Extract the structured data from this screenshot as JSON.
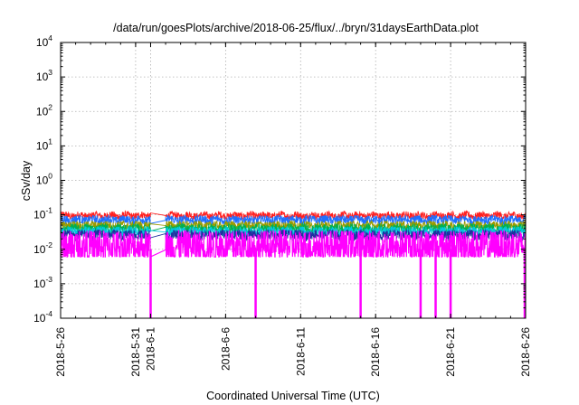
{
  "chart_data": {
    "type": "line",
    "title": "/data/run/goesPlots/archive/2018-06-25/flux/../bryn/31daysEarthData.plot",
    "xlabel": "Coordinated Universal Time (UTC)",
    "ylabel": "cSv/day",
    "y_scale": "log",
    "ylim": [
      0.0001,
      10000
    ],
    "xlim": [
      "2018-05-26",
      "2018-06-26"
    ],
    "grid": true,
    "legend": "none",
    "y_ticks": [
      {
        "base": "10",
        "exp": "-4",
        "value": 0.0001
      },
      {
        "base": "10",
        "exp": "-3",
        "value": 0.001
      },
      {
        "base": "10",
        "exp": "-2",
        "value": 0.01
      },
      {
        "base": "10",
        "exp": "-1",
        "value": 0.1
      },
      {
        "base": "10",
        "exp": "0",
        "value": 1
      },
      {
        "base": "10",
        "exp": "1",
        "value": 10
      },
      {
        "base": "10",
        "exp": "2",
        "value": 100
      },
      {
        "base": "10",
        "exp": "3",
        "value": 1000
      },
      {
        "base": "10",
        "exp": "4",
        "value": 10000
      }
    ],
    "x_ticks": [
      "2018-5-26",
      "2018-5-31",
      "2018-6-1",
      "2018-6-6",
      "2018-6-11",
      "2018-6-16",
      "2018-6-21",
      "2018-6-26"
    ],
    "x_tick_dates": [
      "2018-05-26",
      "2018-05-31",
      "2018-06-01",
      "2018-06-06",
      "2018-06-11",
      "2018-06-16",
      "2018-06-21",
      "2018-06-26"
    ],
    "data_segments": [
      {
        "start": "2018-05-26",
        "end": "2018-06-01"
      },
      {
        "start": "2018-06-02",
        "end": "2018-06-13"
      },
      {
        "start": "2018-06-13",
        "end": "2018-06-26"
      }
    ],
    "gap_connectors": [
      {
        "from": "2018-06-01",
        "to": "2018-06-02"
      },
      {
        "from": "2018-06-13",
        "to": "2018-06-13"
      }
    ],
    "series": [
      {
        "color": "#ff2020",
        "mean": 0.095,
        "min": 0.075,
        "max": 0.13
      },
      {
        "color": "#1f6fff",
        "mean": 0.072,
        "min": 0.05,
        "max": 0.095
      },
      {
        "color": "#9a9a00",
        "mean": 0.05,
        "min": 0.035,
        "max": 0.065
      },
      {
        "color": "#00b050",
        "mean": 0.04,
        "min": 0.028,
        "max": 0.055
      },
      {
        "color": "#00c8e0",
        "mean": 0.033,
        "min": 0.022,
        "max": 0.045
      },
      {
        "color": "#2030a0",
        "mean": 0.026,
        "min": 0.017,
        "max": 0.036
      },
      {
        "color": "#ff00ff",
        "mean": 0.012,
        "min": 0.006,
        "max": 0.045
      }
    ],
    "magenta_dropouts": [
      "2018-06-01",
      "2018-06-08",
      "2018-06-15",
      "2018-06-19",
      "2018-06-20",
      "2018-06-21",
      "2018-06-26"
    ]
  }
}
